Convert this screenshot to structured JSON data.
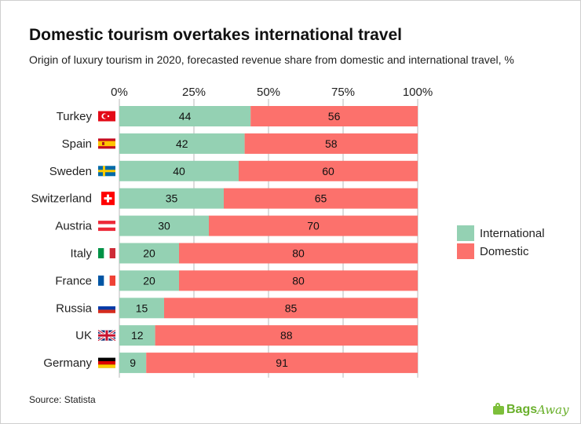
{
  "chart_data": {
    "type": "bar",
    "orientation": "horizontal",
    "stacked": true,
    "title": "Domestic tourism overtakes international travel",
    "subtitle": "Origin of luxury tourism in 2020, forecasted revenue share from domestic and international travel, %",
    "categories": [
      "Turkey",
      "Spain",
      "Sweden",
      "Switzerland",
      "Austria",
      "Italy",
      "France",
      "Russia",
      "UK",
      "Germany"
    ],
    "series": [
      {
        "name": "International",
        "color": "#94d1b3",
        "values": [
          44,
          42,
          40,
          35,
          30,
          20,
          20,
          15,
          12,
          9
        ]
      },
      {
        "name": "Domestic",
        "color": "#fc716c",
        "values": [
          56,
          58,
          60,
          65,
          70,
          80,
          80,
          85,
          88,
          91
        ]
      }
    ],
    "x_ticks": [
      "0%",
      "25%",
      "50%",
      "75%",
      "100%"
    ],
    "xlim": [
      0,
      100
    ],
    "legend_position": "right",
    "grid": true
  },
  "source": "Source: Statista",
  "logo": {
    "part1": "Bags",
    "part2": "Away"
  }
}
